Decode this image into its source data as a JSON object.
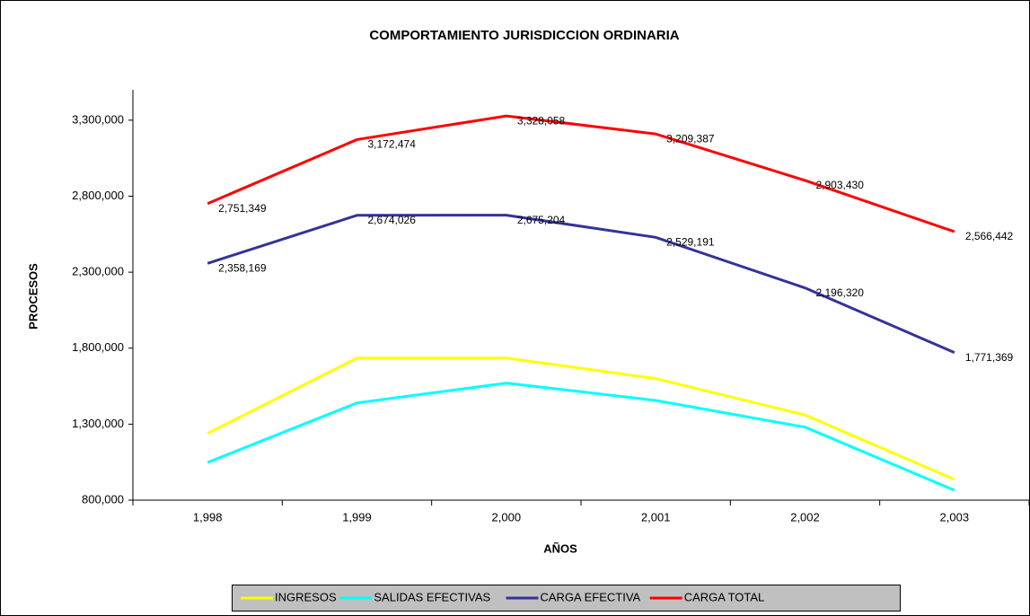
{
  "chart_data": {
    "type": "line",
    "title": "COMPORTAMIENTO  JURISDICCION ORDINARIA",
    "x_label": "AÑOS",
    "y_label": "PROCESOS",
    "categories": [
      "1,998",
      "1,999",
      "2,000",
      "2,001",
      "2,002",
      "2,003"
    ],
    "ylim": [
      800000,
      3500000
    ],
    "yticks": [
      {
        "value": 800000,
        "label": "800,000"
      },
      {
        "value": 1300000,
        "label": "1,300,000"
      },
      {
        "value": 1800000,
        "label": "1,800,000"
      },
      {
        "value": 2300000,
        "label": "2,300,000"
      },
      {
        "value": 2800000,
        "label": "2,800,000"
      },
      {
        "value": 3300000,
        "label": "3,300,000"
      }
    ],
    "grid": false,
    "legend": "bottom",
    "series": [
      {
        "name": "INGRESOS",
        "color": "#ffff00",
        "values": [
          1240000,
          1735000,
          1735000,
          1600000,
          1360000,
          936000
        ]
      },
      {
        "name": "SALIDAS EFECTIVAS",
        "color": "#00ffff",
        "values": [
          1048000,
          1440000,
          1570000,
          1456000,
          1280000,
          865000
        ]
      },
      {
        "name": "CARGA EFECTIVA",
        "color": "#333399",
        "values": [
          2358169,
          2674026,
          2675204,
          2529191,
          2196320,
          1771369
        ],
        "value_labels": [
          "2,358,169",
          "2,674,026",
          "2,675,204",
          "2,529,191",
          "2,196,320",
          "1,771,369"
        ]
      },
      {
        "name": "CARGA TOTAL",
        "color": "#ff0000",
        "values": [
          2751349,
          3172474,
          3328058,
          3209387,
          2903430,
          2566442
        ],
        "value_labels": [
          "2,751,349",
          "3,172,474",
          "3,328,058",
          "3,209,387",
          "2,903,430",
          "2,566,442"
        ]
      }
    ]
  }
}
